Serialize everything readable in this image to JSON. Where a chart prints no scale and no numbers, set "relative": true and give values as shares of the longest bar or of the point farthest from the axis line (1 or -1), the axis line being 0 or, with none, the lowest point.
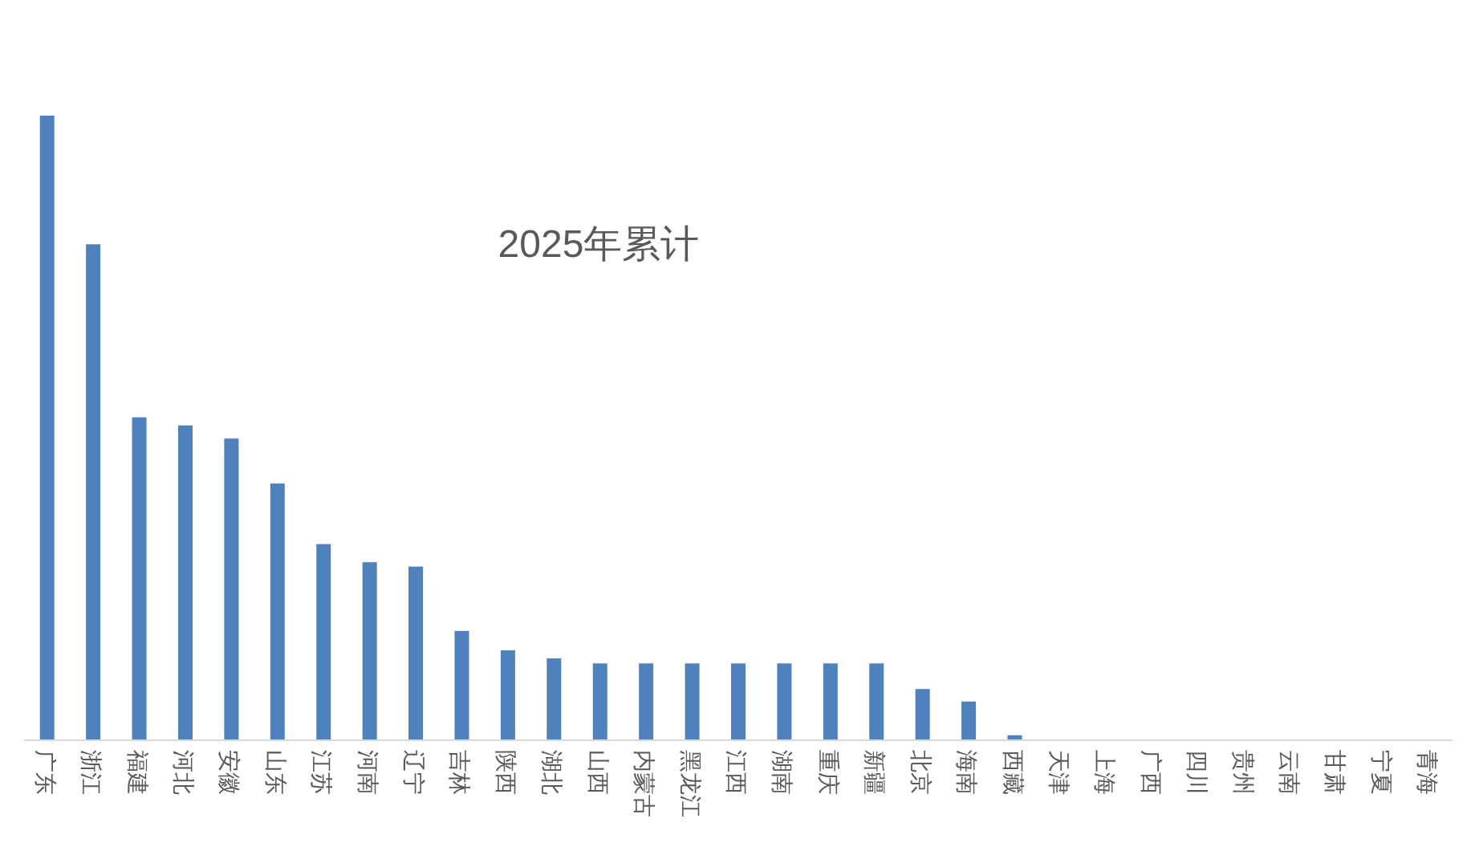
{
  "chart_data": {
    "type": "bar",
    "title": "2025年累计",
    "relative": true,
    "color": "#4f81bd",
    "categories": [
      "广东",
      "浙江",
      "福建",
      "河北",
      "安徽",
      "山东",
      "江苏",
      "河南",
      "辽宁",
      "吉林",
      "陕西",
      "湖北",
      "山西",
      "内蒙古",
      "黑龙江",
      "江西",
      "湖南",
      "重庆",
      "新疆",
      "北京",
      "海南",
      "西藏",
      "天津",
      "上海",
      "广西",
      "四川",
      "贵州",
      "云南",
      "甘肃",
      "宁夏",
      "青海"
    ],
    "values": [
      1,
      0.794,
      0.517,
      0.504,
      0.483,
      0.411,
      0.314,
      0.285,
      0.278,
      0.175,
      0.144,
      0.131,
      0.123,
      0.123,
      0.123,
      0.123,
      0.123,
      0.123,
      0.123,
      0.082,
      0.062,
      0.008,
      0,
      0,
      0,
      0,
      0,
      0,
      0,
      0,
      0
    ]
  }
}
